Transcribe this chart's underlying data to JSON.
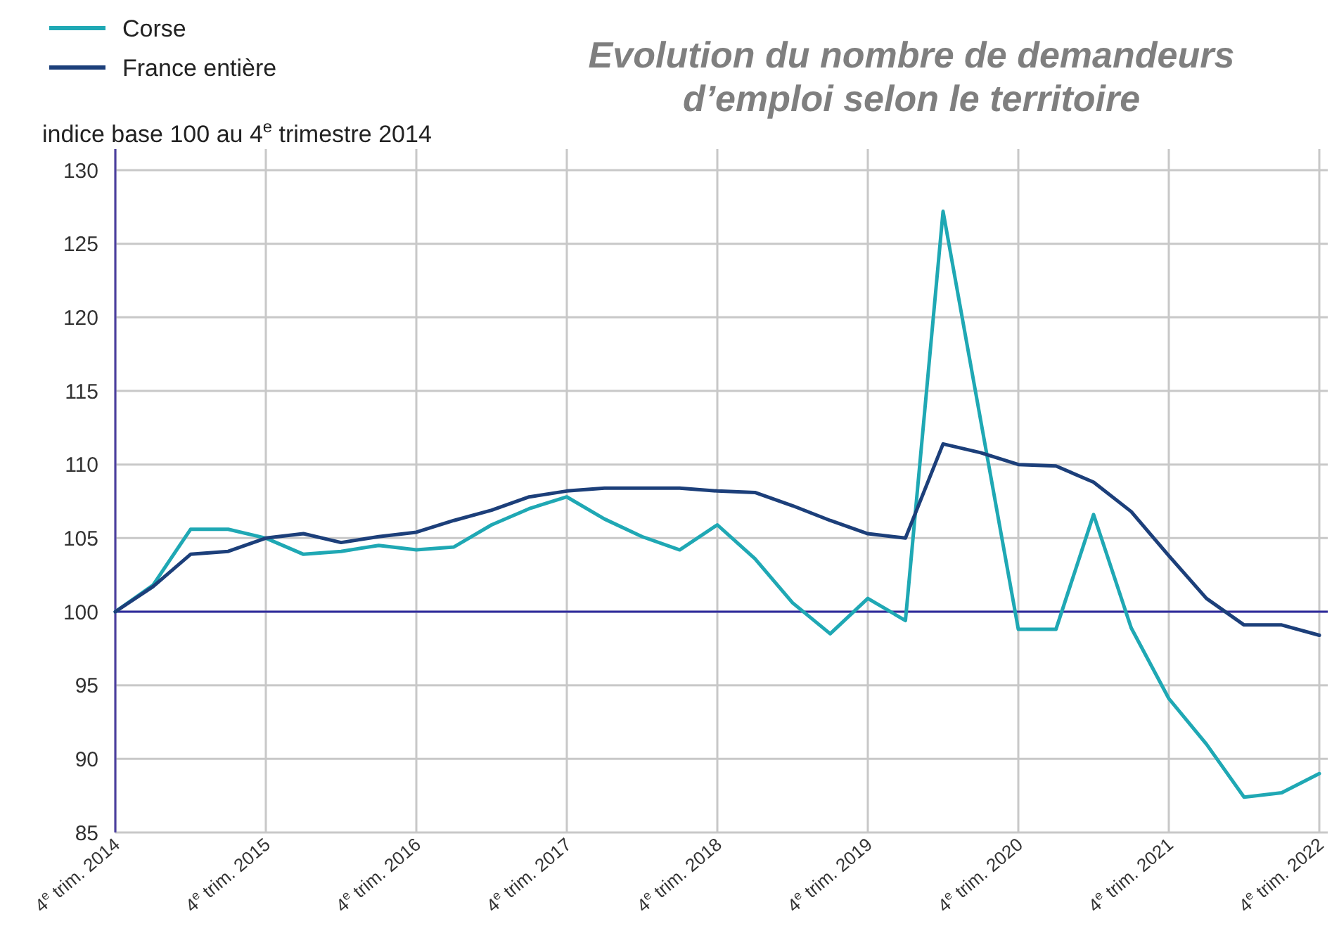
{
  "chart_data": {
    "type": "line",
    "title": "Evolution du nombre de demandeurs d’emploi selon le territoire",
    "ylabel": "indice base 100 au 4$^{e}$ trimestre 2014",
    "categories": [
      "4$^{e}$ trim. 2014",
      null,
      null,
      null,
      "4$^{e}$ trim. 2015",
      null,
      null,
      null,
      "4$^{e}$ trim. 2016",
      null,
      null,
      null,
      "4$^{e}$ trim. 2017",
      null,
      null,
      null,
      "4$^{e}$ trim. 2018",
      null,
      null,
      null,
      "4$^{e}$ trim. 2019",
      null,
      null,
      null,
      "4$^{e}$ trim. 2020",
      null,
      null,
      null,
      "4$^{e}$ trim. 2021",
      null,
      null,
      null,
      "4$^{e}$ trim. 2022"
    ],
    "series": [
      {
        "name": "Corse",
        "color": "#1fa8b4",
        "values": [
          100,
          101.8,
          105.6,
          105.6,
          105.0,
          103.9,
          104.1,
          104.5,
          104.2,
          104.4,
          105.9,
          107.0,
          107.8,
          106.3,
          105.1,
          104.2,
          105.9,
          103.6,
          100.6,
          98.5,
          100.9,
          99.4,
          127.2,
          113,
          98.8,
          98.8,
          106.6,
          98.9,
          94.1,
          91.0,
          87.4,
          87.7,
          89.0
        ]
      },
      {
        "name": "France entière",
        "color": "#1c3f7a",
        "values": [
          100,
          101.7,
          103.9,
          104.1,
          105.0,
          105.3,
          104.7,
          105.1,
          105.4,
          106.2,
          106.9,
          107.8,
          108.2,
          108.4,
          108.4,
          108.4,
          108.2,
          108.1,
          107.2,
          106.2,
          105.3,
          105.0,
          111.4,
          110.8,
          110.0,
          109.9,
          108.8,
          106.8,
          103.8,
          100.9,
          99.1,
          99.1,
          98.4
        ]
      }
    ],
    "ylim": [
      85,
      130
    ],
    "yticks": [
      85,
      90,
      95,
      100,
      105,
      110,
      115,
      120,
      125,
      130
    ],
    "ref_lines": [
      {
        "axis": "y",
        "value": 100,
        "color": "#2e2a9c"
      }
    ],
    "grid": true,
    "legend": "top left",
    "marker": "none",
    "line_style": "solid"
  }
}
